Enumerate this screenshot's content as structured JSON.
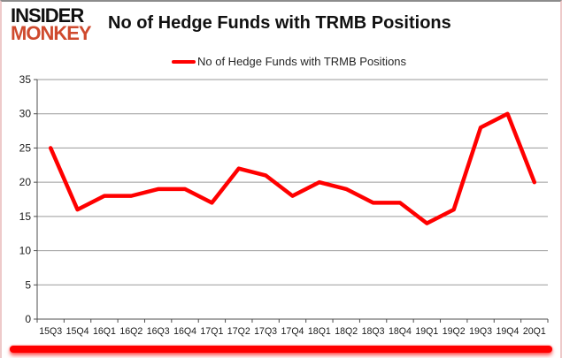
{
  "brand": {
    "line1": "INSIDER",
    "line2": "MONKEY",
    "accent_color": "#cf4a2e"
  },
  "header": {
    "title": "No of Hedge Funds with TRMB Positions"
  },
  "legend": {
    "label": "No of Hedge Funds with TRMB Positions",
    "line_color": "#ff0000"
  },
  "chart_data": {
    "type": "line",
    "title": "No of Hedge Funds with TRMB Positions",
    "categories": [
      "15Q3",
      "15Q4",
      "16Q1",
      "16Q2",
      "16Q3",
      "16Q4",
      "17Q1",
      "17Q2",
      "17Q3",
      "17Q4",
      "18Q1",
      "18Q2",
      "18Q3",
      "18Q4",
      "19Q1",
      "19Q2",
      "19Q3",
      "19Q4",
      "20Q1"
    ],
    "series": [
      {
        "name": "No of Hedge Funds with TRMB Positions",
        "color": "#ff0000",
        "values": [
          25,
          16,
          18,
          18,
          19,
          19,
          17,
          22,
          21,
          18,
          20,
          19,
          17,
          17,
          14,
          16,
          28,
          30,
          20
        ]
      }
    ],
    "xlabel": "",
    "ylabel": "",
    "ylim": [
      0,
      35
    ],
    "yticks": [
      0,
      5,
      10,
      15,
      20,
      25,
      30,
      35
    ],
    "grid": true,
    "legend_position": "top-center",
    "gridline_color": "#9a9a9a",
    "axis_color": "#4d4d4d",
    "tick_label_color": "#1a1a1a"
  }
}
